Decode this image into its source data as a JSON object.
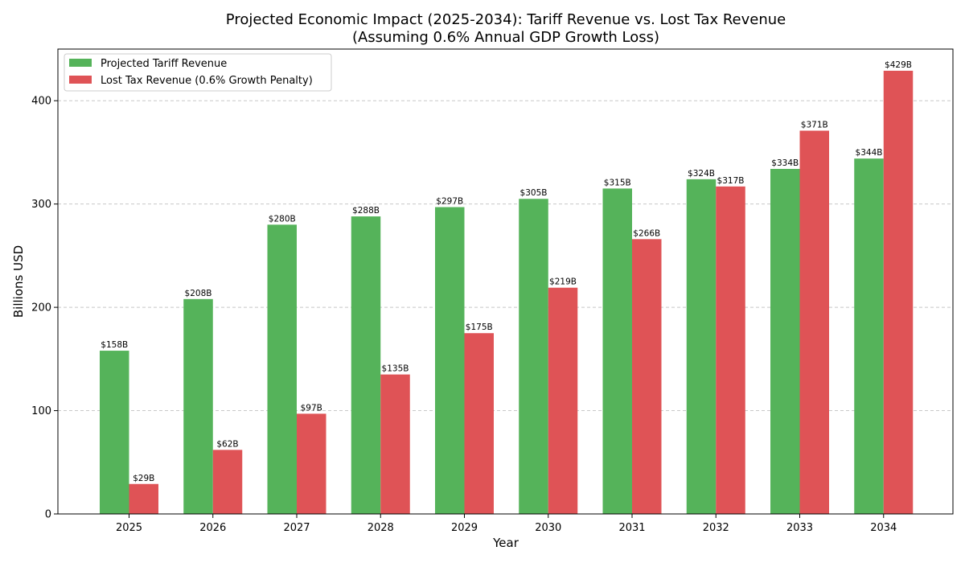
{
  "chart_data": {
    "type": "bar",
    "title": "Projected Economic Impact (2025-2034): Tariff Revenue vs. Lost Tax Revenue",
    "subtitle": "(Assuming 0.6% Annual GDP Growth Loss)",
    "xlabel": "Year",
    "ylabel": "Billions USD",
    "categories": [
      "2025",
      "2026",
      "2027",
      "2028",
      "2029",
      "2030",
      "2031",
      "2032",
      "2033",
      "2034"
    ],
    "ylim": [
      0,
      450
    ],
    "yticks": [
      0,
      100,
      200,
      300,
      400
    ],
    "grid": "horizontal dashed",
    "legend_position": "top-left",
    "series": [
      {
        "name": "Projected Tariff Revenue",
        "color": "#55b35a",
        "values": [
          158,
          208,
          280,
          288,
          297,
          305,
          315,
          324,
          334,
          344
        ],
        "labels": [
          "$158B",
          "$208B",
          "$280B",
          "$288B",
          "$297B",
          "$305B",
          "$315B",
          "$324B",
          "$334B",
          "$344B"
        ]
      },
      {
        "name": "Lost Tax Revenue (0.6% Growth Penalty)",
        "color": "#df5356",
        "values": [
          29,
          62,
          97,
          135,
          175,
          219,
          266,
          317,
          371,
          429
        ],
        "labels": [
          "$29B",
          "$62B",
          "$97B",
          "$135B",
          "$175B",
          "$219B",
          "$266B",
          "$317B",
          "$371B",
          "$429B"
        ]
      }
    ]
  }
}
